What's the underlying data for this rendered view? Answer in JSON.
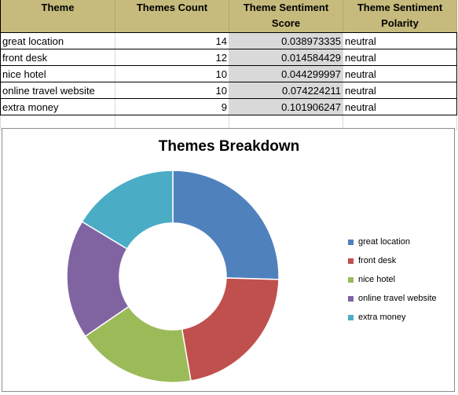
{
  "table": {
    "headers": [
      "Theme",
      "Themes Count",
      "Theme Sentiment\nScore",
      "Theme Sentiment\nPolarity"
    ],
    "rows": [
      {
        "theme": "great location",
        "count": "14",
        "score": "0.038973335",
        "polarity": "neutral"
      },
      {
        "theme": "front desk",
        "count": "12",
        "score": "0.014584429",
        "polarity": "neutral"
      },
      {
        "theme": "nice hotel",
        "count": "10",
        "score": "0.044299997",
        "polarity": "neutral"
      },
      {
        "theme": "online travel website",
        "count": "10",
        "score": "0.074224211",
        "polarity": "neutral"
      },
      {
        "theme": "extra money",
        "count": "9",
        "score": "0.101906247",
        "polarity": "neutral"
      }
    ]
  },
  "chart_data": {
    "type": "pie",
    "subtype": "doughnut",
    "title": "Themes Breakdown",
    "categories": [
      "great location",
      "front desk",
      "nice hotel",
      "online travel website",
      "extra money"
    ],
    "values": [
      14,
      12,
      10,
      10,
      9
    ],
    "colors": [
      "#4f81bd",
      "#c0504d",
      "#9bbb59",
      "#8064a2",
      "#4bacc6"
    ],
    "legend_position": "right"
  }
}
